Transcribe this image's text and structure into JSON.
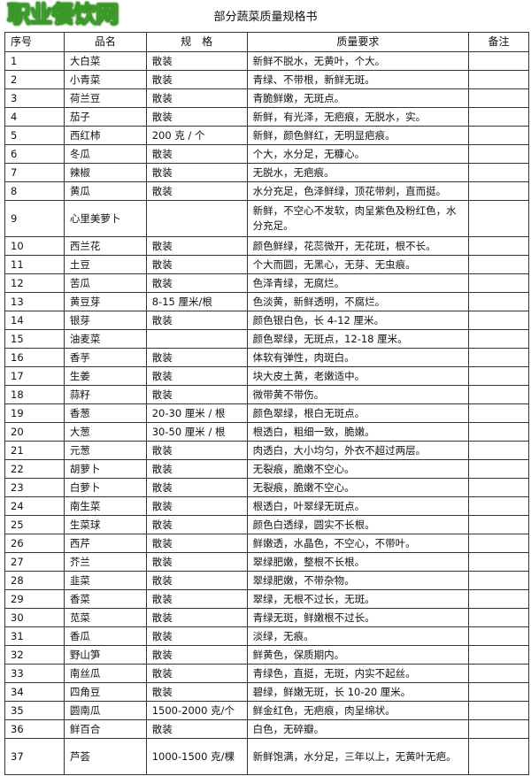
{
  "title": "部分蔬菜质量规格书",
  "watermark": "职业餐饮网",
  "headers": [
    "序号",
    "品名",
    "规　格",
    "质量要求",
    "备注"
  ],
  "rows": [
    [
      "1",
      "大白菜",
      "散装",
      "新鲜不脱水，无黄叶，个大。",
      ""
    ],
    [
      "2",
      "小青菜",
      "散装",
      "青绿、不带根，新鲜无斑。",
      ""
    ],
    [
      "3",
      "荷兰豆",
      "散装",
      "青脆鲜嫩，无斑点。",
      ""
    ],
    [
      "4",
      "茄子",
      "散装",
      "新鲜，有光泽，无疤痕，无脱水，实。",
      ""
    ],
    [
      "5",
      "西红柿",
      "200 克 / 个",
      "新鲜，颜色鲜红，无明显疤痕。",
      ""
    ],
    [
      "6",
      "冬瓜",
      "散装",
      "个大，水分足，无糠心。",
      ""
    ],
    [
      "7",
      "辣椒",
      "散装",
      "无脱水，无疤痕。",
      ""
    ],
    [
      "8",
      "黄瓜",
      "散装",
      "水分充足，色泽鲜绿，顶花带刺，直而挺。",
      ""
    ],
    [
      "9",
      "心里美萝卜",
      "",
      "新鲜，不空心不发软，肉呈紫色及粉红色，水分充足。",
      ""
    ],
    [
      "10",
      "西兰花",
      "散装",
      "颜色鲜绿，花蕊微开，无花斑，根不长。",
      ""
    ],
    [
      "11",
      "土豆",
      "散装",
      "个大而圆，无黑心，无芽、无虫痕。",
      ""
    ],
    [
      "12",
      "苦瓜",
      "散装",
      "色泽青绿，无腐烂。",
      ""
    ],
    [
      "13",
      "黄豆芽",
      "8-15 厘米/根",
      "色淡黄，新鲜透明，不腐烂。",
      ""
    ],
    [
      "14",
      "银芽",
      "散装",
      "颜色银白色，长 4-12 厘米。",
      ""
    ],
    [
      "15",
      "油麦菜",
      "",
      "颜色翠绿，无斑点，12-18 厘米。",
      ""
    ],
    [
      "16",
      "香芋",
      "散装",
      "体软有弹性，肉斑白。",
      ""
    ],
    [
      "17",
      "生姜",
      "散装",
      "块大皮土黄，老嫩适中。",
      ""
    ],
    [
      "18",
      "蒜籽",
      "散装",
      "微带黄不带伤。",
      ""
    ],
    [
      "19",
      "香葱",
      "20-30 厘米 / 根",
      "颜色翠绿，根白无斑点。",
      ""
    ],
    [
      "20",
      "大葱",
      "30-50 厘米 / 根",
      "根透白，粗细一致，脆嫩。",
      ""
    ],
    [
      "21",
      "元葱",
      "散装",
      "肉透白，大小均匀，外衣不超过两层。",
      ""
    ],
    [
      "22",
      "胡萝卜",
      "散装",
      "无裂痕，脆嫩不空心。",
      ""
    ],
    [
      "23",
      "白萝卜",
      "散装",
      "无裂痕，脆嫩不空心。",
      ""
    ],
    [
      "24",
      "南生菜",
      "散装",
      "根透白，叶翠绿无斑点。",
      ""
    ],
    [
      "25",
      "生菜球",
      "散装",
      "颜色白透绿，圆实不长根。",
      ""
    ],
    [
      "26",
      "西芹",
      "散装",
      "鲜嫩透，水晶色，不空心，不带叶。",
      ""
    ],
    [
      "27",
      "芥兰",
      "散装",
      "翠绿肥嫩，整根不长根。",
      ""
    ],
    [
      "28",
      "韭菜",
      "散装",
      "翠绿肥嫩，不带杂物。",
      ""
    ],
    [
      "29",
      "香菜",
      "散装",
      "翠绿，无根不过长，无斑。",
      ""
    ],
    [
      "30",
      "苋菜",
      "散装",
      "青绿无斑，鲜嫩根不过长。",
      ""
    ],
    [
      "31",
      "香瓜",
      "散装",
      "淡绿，无痕。",
      ""
    ],
    [
      "32",
      "野山笋",
      "散装",
      "鲜黄色，保质期内。",
      ""
    ],
    [
      "33",
      "南丝瓜",
      "散装",
      "青绿色，直挺，无斑，内实不起丝。",
      ""
    ],
    [
      "34",
      "四角豆",
      "散装",
      "碧绿，鲜嫩无斑，长 10-20 厘米。",
      ""
    ],
    [
      "35",
      "圆南瓜",
      "1500-2000 克/个",
      "鲜金红色，无疤痕，肉呈绵状。",
      ""
    ],
    [
      "36",
      "鲜百合",
      "散装",
      "白色，无碎瓣。",
      ""
    ],
    [
      "37",
      "芦荟",
      "1000-1500 克/棵",
      "新鲜饱满，水分足，三年以上，无黄叶无疤。",
      ""
    ]
  ]
}
